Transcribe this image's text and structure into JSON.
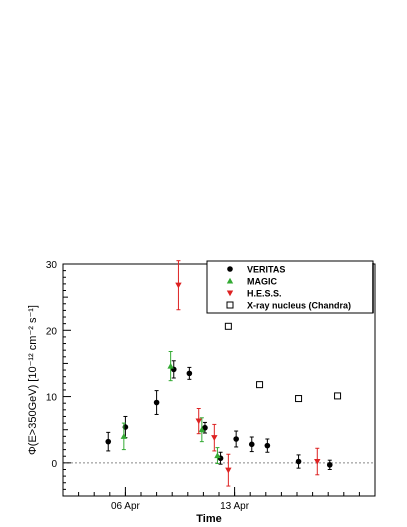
{
  "chart_data": {
    "type": "scatter",
    "title": "",
    "xlabel": "Time",
    "ylabel": "Φ(E>350GeV) [10⁻¹² cm⁻² s⁻¹]",
    "xlim": [
      "2008-04-02",
      "2008-04-22"
    ],
    "ylim": [
      -5,
      30
    ],
    "y_ticks": [
      0,
      10,
      20,
      30
    ],
    "x_ticks": [
      {
        "date": "2008-04-06",
        "label": "06 Apr"
      },
      {
        "date": "2008-04-13",
        "label": "13 Apr"
      }
    ],
    "zero_line": true,
    "grid": false,
    "legend_position": "top-right",
    "series": [
      {
        "name": "VERITAS",
        "marker": "circle-filled",
        "color": "#000000",
        "points": [
          {
            "x": "2008-04-04.9",
            "y": 3.2,
            "err": 1.4
          },
          {
            "x": "2008-04-06.0",
            "y": 5.4,
            "err": 1.6
          },
          {
            "x": "2008-04-08.0",
            "y": 9.1,
            "err": 1.8
          },
          {
            "x": "2008-04-09.1",
            "y": 14.1,
            "err": 1.3
          },
          {
            "x": "2008-04-10.1",
            "y": 13.5,
            "err": 0.9
          },
          {
            "x": "2008-04-11.1",
            "y": 5.3,
            "err": 0.8
          },
          {
            "x": "2008-04-12.1",
            "y": 0.7,
            "err": 0.9
          },
          {
            "x": "2008-04-13.1",
            "y": 3.6,
            "err": 1.2
          },
          {
            "x": "2008-04-14.1",
            "y": 2.8,
            "err": 1.1
          },
          {
            "x": "2008-04-15.1",
            "y": 2.6,
            "err": 1.0
          },
          {
            "x": "2008-04-17.1",
            "y": 0.2,
            "err": 1.0
          },
          {
            "x": "2008-04-19.1",
            "y": -0.3,
            "err": 0.7
          }
        ]
      },
      {
        "name": "MAGIC",
        "marker": "triangle-up",
        "color": "#33aa33",
        "points": [
          {
            "x": "2008-04-05.9",
            "y": 4.0,
            "err": 2.0
          },
          {
            "x": "2008-04-08.9",
            "y": 14.6,
            "err": 2.2
          },
          {
            "x": "2008-04-10.9",
            "y": 5.0,
            "err": 1.8
          },
          {
            "x": "2008-04-11.9",
            "y": 1.1,
            "err": 1.2
          }
        ]
      },
      {
        "name": "H.E.S.S.",
        "marker": "triangle-down",
        "color": "#dd2222",
        "points": [
          {
            "x": "2008-04-09.4",
            "y": 26.8,
            "err": 3.7
          },
          {
            "x": "2008-04-10.7",
            "y": 6.3,
            "err": 1.9
          },
          {
            "x": "2008-04-11.7",
            "y": 3.8,
            "err": 2.0
          },
          {
            "x": "2008-04-12.6",
            "y": -1.1,
            "err": 2.4
          },
          {
            "x": "2008-04-18.3",
            "y": 0.2,
            "err": 2.0
          }
        ]
      },
      {
        "name": "X-ray nucleus (Chandra)",
        "marker": "square-open",
        "color": "#000000",
        "points": [
          {
            "x": "2008-04-12.6",
            "y": 20.6
          },
          {
            "x": "2008-04-14.6",
            "y": 11.8
          },
          {
            "x": "2008-04-17.1",
            "y": 9.7
          },
          {
            "x": "2008-04-19.6",
            "y": 10.1
          }
        ]
      }
    ]
  }
}
